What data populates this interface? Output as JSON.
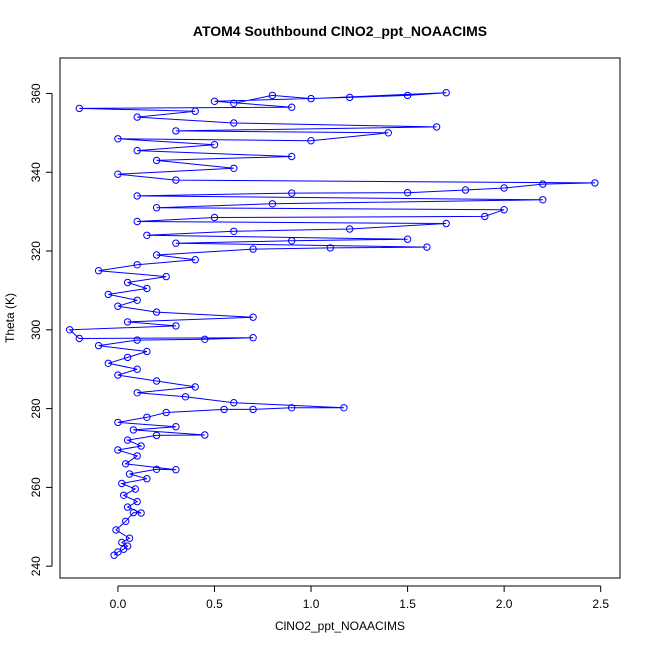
{
  "chart_data": {
    "type": "scatter",
    "title": "ATOM4 Southbound ClNO2_ppt_NOAACIMS",
    "xlabel": "ClNO2_ppt_NOAACIMS",
    "ylabel": "Theta (K)",
    "xlim": [
      -0.3,
      2.6
    ],
    "ylim": [
      237,
      369
    ],
    "xticks": [
      0.0,
      0.5,
      1.0,
      1.5,
      2.0,
      2.5
    ],
    "xtick_labels": [
      "0.0",
      "0.5",
      "1.0",
      "1.5",
      "2.0",
      "2.5"
    ],
    "yticks": [
      240,
      260,
      280,
      300,
      320,
      340,
      360
    ],
    "ytick_labels": [
      "240",
      "260",
      "280",
      "300",
      "320",
      "340",
      "360"
    ],
    "grid": false,
    "legend": "none",
    "marker": "open-circle",
    "connected": true,
    "color": "#0000ff",
    "series": [
      {
        "points": [
          [
            -0.02,
            242.8
          ],
          [
            0.0,
            243.6
          ],
          [
            0.03,
            244.3
          ],
          [
            0.05,
            245.1
          ],
          [
            0.02,
            246.0
          ],
          [
            0.06,
            247.1
          ],
          [
            -0.01,
            249.2
          ],
          [
            0.04,
            251.4
          ],
          [
            0.08,
            253.6
          ],
          [
            0.12,
            253.5
          ],
          [
            0.05,
            255.0
          ],
          [
            0.1,
            256.4
          ],
          [
            0.03,
            258.0
          ],
          [
            0.09,
            259.6
          ],
          [
            0.02,
            261.0
          ],
          [
            0.15,
            262.2
          ],
          [
            0.06,
            263.4
          ],
          [
            0.2,
            264.6
          ],
          [
            0.3,
            264.5
          ],
          [
            0.04,
            266.0
          ],
          [
            0.1,
            268.0
          ],
          [
            0.0,
            269.5
          ],
          [
            0.12,
            270.5
          ],
          [
            0.05,
            272.0
          ],
          [
            0.2,
            273.2
          ],
          [
            0.45,
            273.3
          ],
          [
            0.08,
            274.6
          ],
          [
            0.3,
            275.4
          ],
          [
            0.0,
            276.5
          ],
          [
            0.15,
            277.8
          ],
          [
            0.25,
            279.0
          ],
          [
            0.55,
            279.8
          ],
          [
            0.7,
            279.8
          ],
          [
            0.9,
            280.2
          ],
          [
            1.17,
            280.2
          ],
          [
            0.6,
            281.5
          ],
          [
            0.35,
            283.0
          ],
          [
            0.1,
            284.0
          ],
          [
            0.4,
            285.5
          ],
          [
            0.2,
            287.0
          ],
          [
            0.0,
            288.5
          ],
          [
            0.1,
            290.0
          ],
          [
            -0.05,
            291.5
          ],
          [
            0.05,
            293.0
          ],
          [
            0.15,
            294.5
          ],
          [
            -0.1,
            296.0
          ],
          [
            0.1,
            297.4
          ],
          [
            0.45,
            297.6
          ],
          [
            0.7,
            298.0
          ],
          [
            -0.2,
            297.8
          ],
          [
            -0.25,
            300.0
          ],
          [
            0.3,
            301.0
          ],
          [
            0.05,
            302.0
          ],
          [
            0.7,
            303.2
          ],
          [
            0.2,
            304.5
          ],
          [
            0.0,
            306.0
          ],
          [
            0.1,
            307.5
          ],
          [
            -0.05,
            309.0
          ],
          [
            0.15,
            310.5
          ],
          [
            0.05,
            312.0
          ],
          [
            0.25,
            313.5
          ],
          [
            -0.1,
            315.0
          ],
          [
            0.1,
            316.5
          ],
          [
            0.4,
            317.8
          ],
          [
            0.2,
            319.0
          ],
          [
            0.7,
            320.5
          ],
          [
            1.1,
            320.8
          ],
          [
            1.6,
            321.0
          ],
          [
            0.3,
            322.0
          ],
          [
            0.9,
            322.6
          ],
          [
            1.5,
            323.0
          ],
          [
            0.15,
            324.0
          ],
          [
            0.6,
            325.0
          ],
          [
            1.2,
            325.6
          ],
          [
            1.7,
            327.0
          ],
          [
            0.1,
            327.5
          ],
          [
            0.5,
            328.5
          ],
          [
            1.9,
            328.8
          ],
          [
            2.0,
            330.5
          ],
          [
            0.2,
            331.0
          ],
          [
            0.8,
            332.0
          ],
          [
            2.2,
            333.0
          ],
          [
            0.1,
            334.0
          ],
          [
            0.9,
            334.7
          ],
          [
            1.5,
            334.8
          ],
          [
            1.8,
            335.5
          ],
          [
            2.0,
            336.0
          ],
          [
            2.2,
            337.0
          ],
          [
            2.47,
            337.3
          ],
          [
            0.3,
            338.0
          ],
          [
            0.0,
            339.5
          ],
          [
            0.6,
            341.0
          ],
          [
            0.2,
            343.0
          ],
          [
            0.9,
            344.0
          ],
          [
            0.1,
            345.5
          ],
          [
            0.5,
            347.0
          ],
          [
            0.0,
            348.5
          ],
          [
            1.0,
            348.0
          ],
          [
            1.4,
            350.0
          ],
          [
            0.3,
            350.5
          ],
          [
            1.65,
            351.5
          ],
          [
            0.6,
            352.5
          ],
          [
            0.1,
            354.0
          ],
          [
            0.4,
            355.5
          ],
          [
            -0.2,
            356.2
          ],
          [
            0.9,
            356.5
          ],
          [
            0.5,
            358.0
          ],
          [
            1.2,
            359.0
          ],
          [
            1.5,
            359.5
          ],
          [
            1.7,
            360.2
          ],
          [
            1.0,
            358.7
          ],
          [
            0.8,
            359.5
          ],
          [
            0.6,
            357.5
          ]
        ]
      }
    ]
  }
}
